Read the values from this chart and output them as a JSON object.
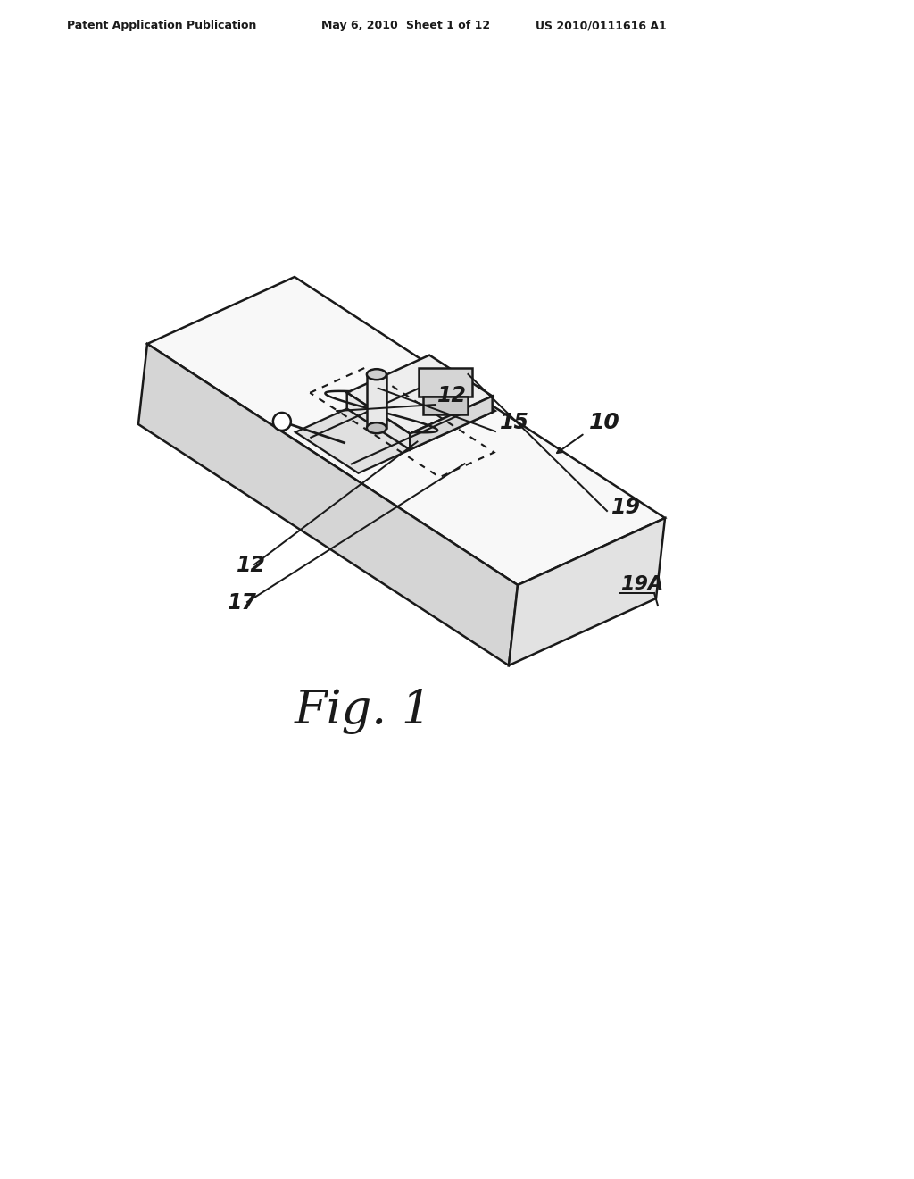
{
  "bg_color": "#ffffff",
  "header_text": "Patent Application Publication",
  "header_date": "May 6, 2010",
  "header_sheet": "Sheet 1 of 12",
  "header_patent": "US 2010/0111616 A1",
  "fig_label": "Fig. 1",
  "line_color": "#1a1a1a",
  "line_width": 1.8,
  "label_fontsize": 17,
  "fig_label_fontsize": 38
}
